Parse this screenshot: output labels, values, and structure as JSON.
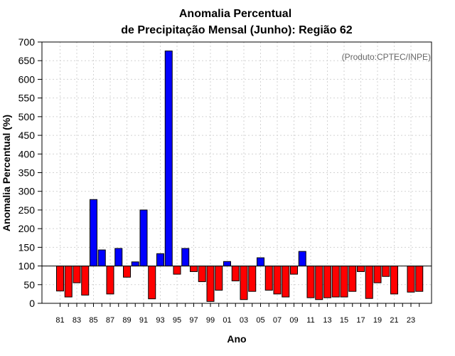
{
  "chart_data": {
    "type": "bar",
    "title_line1": "Anomalia Percentual",
    "title_line2": "de Precipitação Mensal (Junho): Região 62",
    "xlabel": "Ano",
    "ylabel": "Anomalia Percentual (%)",
    "annotation": "(Produto:CPTEC/INPE)",
    "baseline": 100,
    "ylim": [
      0,
      700
    ],
    "yticks": [
      0,
      50,
      100,
      150,
      200,
      250,
      300,
      350,
      400,
      450,
      500,
      550,
      600,
      650,
      700
    ],
    "grid": true,
    "categories": [
      "81",
      "82",
      "83",
      "84",
      "85",
      "86",
      "87",
      "88",
      "89",
      "90",
      "91",
      "92",
      "93",
      "94",
      "95",
      "96",
      "97",
      "98",
      "99",
      "00",
      "01",
      "02",
      "03",
      "04",
      "05",
      "06",
      "07",
      "08",
      "09",
      "10",
      "11",
      "12",
      "13",
      "14",
      "15",
      "16",
      "17",
      "18",
      "19",
      "20",
      "21",
      "22",
      "23",
      "24"
    ],
    "xtick_labels_shown": [
      "81",
      "83",
      "85",
      "87",
      "89",
      "91",
      "93",
      "95",
      "97",
      "99",
      "01",
      "03",
      "05",
      "07",
      "09",
      "11",
      "13",
      "15",
      "17",
      "19",
      "21",
      "23"
    ],
    "values": [
      33,
      17,
      55,
      22,
      278,
      143,
      25,
      147,
      70,
      111,
      250,
      12,
      133,
      676,
      78,
      147,
      85,
      58,
      5,
      35,
      112,
      60,
      10,
      32,
      122,
      35,
      25,
      17,
      78,
      139,
      15,
      10,
      15,
      17,
      17,
      32,
      85,
      13,
      55,
      72,
      25,
      100,
      30,
      32
    ],
    "colors": {
      "above": "#0000ff",
      "below": "#ff0000",
      "outline": "#000000",
      "grid": "#d3d3d3"
    }
  }
}
